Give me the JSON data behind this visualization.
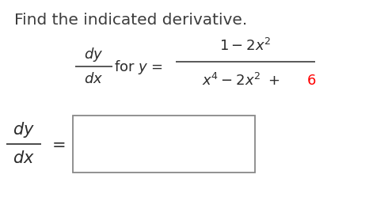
{
  "background_color": "#ffffff",
  "title_text": "Find the indicated derivative.",
  "title_color": "#3d3d3d",
  "title_fontsize": 14.5,
  "main_math_color": "#2b2b2b",
  "red_color": "#ff0000",
  "fig_width": 4.9,
  "fig_height": 2.54,
  "dpi": 100
}
